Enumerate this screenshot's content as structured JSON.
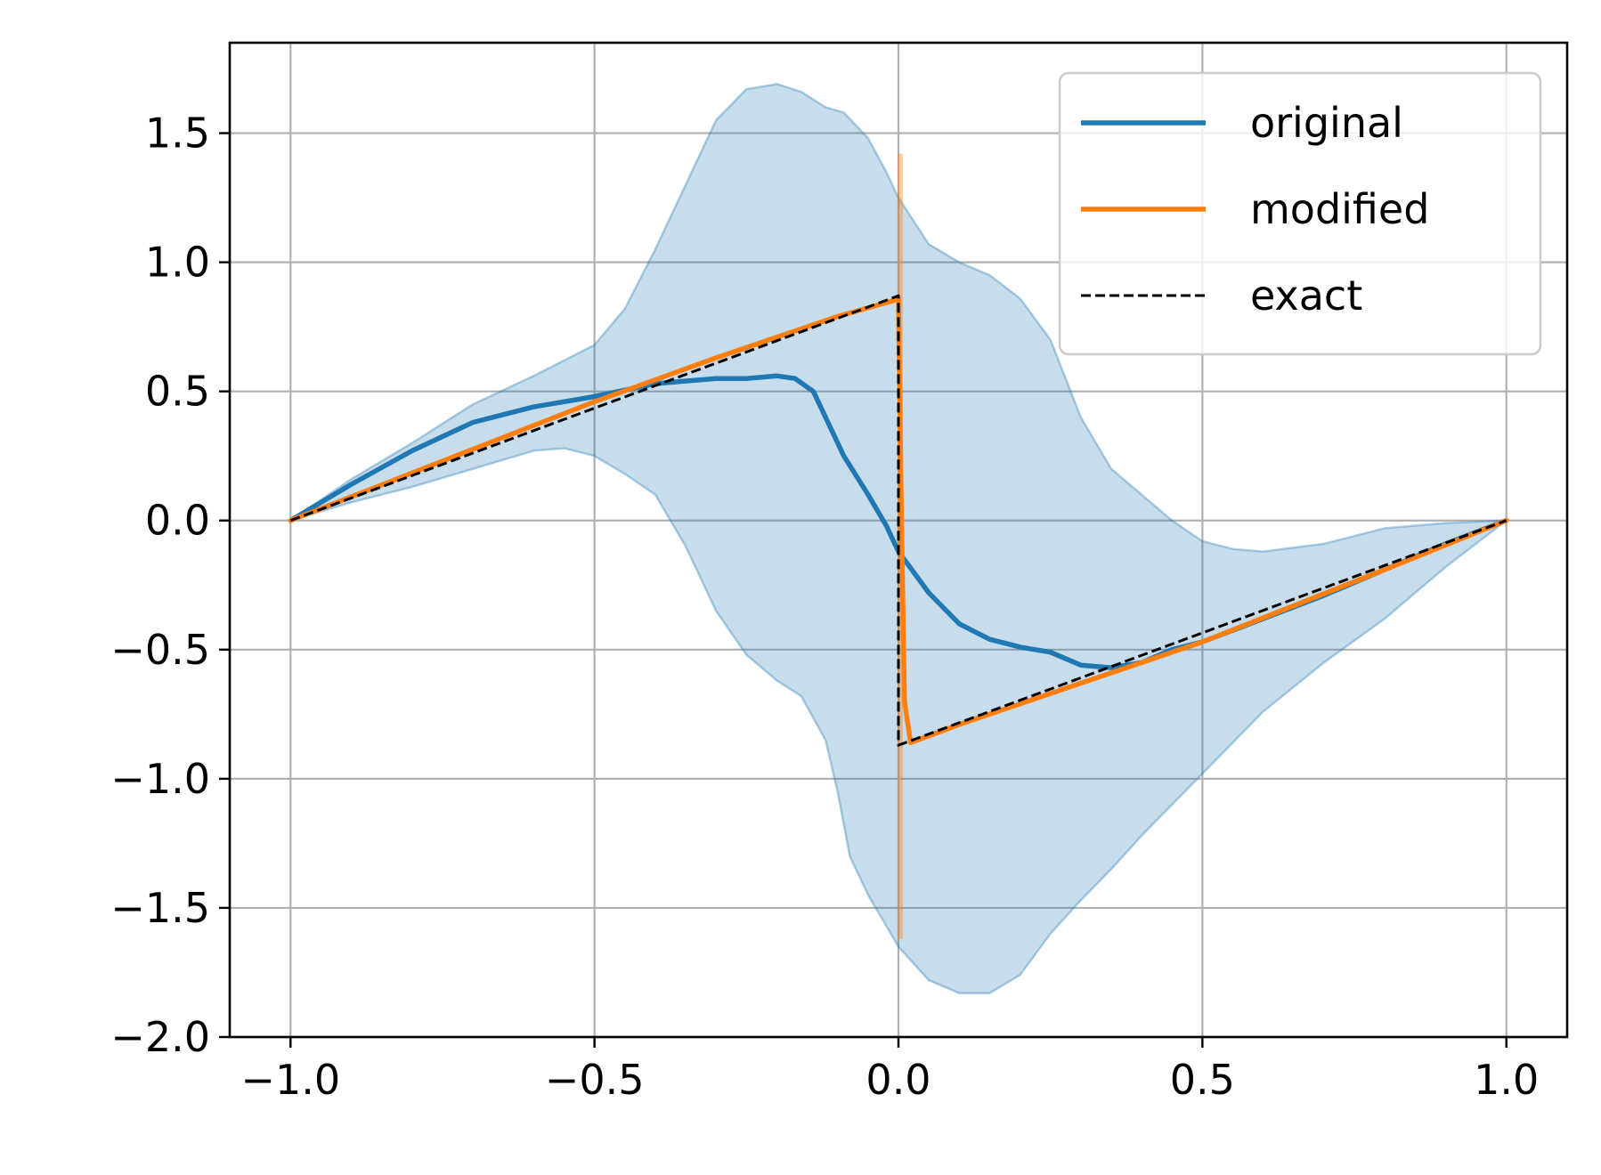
{
  "chart_data": {
    "type": "line",
    "title": "",
    "xlabel": "",
    "ylabel": "",
    "xlim": [
      -1.1,
      1.1
    ],
    "ylim": [
      -2.0,
      1.85
    ],
    "grid": true,
    "legend_position": "top-right",
    "x_ticks": [
      -1.0,
      -0.5,
      0.0,
      0.5,
      1.0
    ],
    "x_tick_labels": [
      "−1.0",
      "−0.5",
      "0.0",
      "0.5",
      "1.0"
    ],
    "y_ticks": [
      -2.0,
      -1.5,
      -1.0,
      -0.5,
      0.0,
      0.5,
      1.0,
      1.5
    ],
    "y_tick_labels": [
      "−2.0",
      "−1.5",
      "−1.0",
      "−0.5",
      "0.0",
      "0.5",
      "1.0",
      "1.5"
    ],
    "band": {
      "series": "original",
      "color": "#1f77b4",
      "upper": [
        [
          -1.0,
          0.0
        ],
        [
          -0.9,
          0.16
        ],
        [
          -0.8,
          0.3
        ],
        [
          -0.7,
          0.45
        ],
        [
          -0.6,
          0.56
        ],
        [
          -0.5,
          0.68
        ],
        [
          -0.45,
          0.82
        ],
        [
          -0.4,
          1.05
        ],
        [
          -0.35,
          1.3
        ],
        [
          -0.3,
          1.55
        ],
        [
          -0.25,
          1.67
        ],
        [
          -0.2,
          1.69
        ],
        [
          -0.16,
          1.66
        ],
        [
          -0.12,
          1.6
        ],
        [
          -0.09,
          1.58
        ],
        [
          -0.05,
          1.48
        ],
        [
          -0.02,
          1.35
        ],
        [
          0.0,
          1.25
        ],
        [
          0.05,
          1.07
        ],
        [
          0.1,
          1.0
        ],
        [
          0.15,
          0.95
        ],
        [
          0.2,
          0.86
        ],
        [
          0.25,
          0.7
        ],
        [
          0.3,
          0.4
        ],
        [
          0.35,
          0.2
        ],
        [
          0.4,
          0.1
        ],
        [
          0.45,
          0.0
        ],
        [
          0.5,
          -0.08
        ],
        [
          0.55,
          -0.11
        ],
        [
          0.6,
          -0.12
        ],
        [
          0.7,
          -0.09
        ],
        [
          0.8,
          -0.03
        ],
        [
          0.9,
          -0.01
        ],
        [
          1.0,
          0.0
        ]
      ],
      "lower": [
        [
          -1.0,
          0.0
        ],
        [
          -0.9,
          0.07
        ],
        [
          -0.8,
          0.13
        ],
        [
          -0.7,
          0.2
        ],
        [
          -0.6,
          0.27
        ],
        [
          -0.55,
          0.28
        ],
        [
          -0.5,
          0.25
        ],
        [
          -0.45,
          0.18
        ],
        [
          -0.4,
          0.1
        ],
        [
          -0.35,
          -0.1
        ],
        [
          -0.3,
          -0.35
        ],
        [
          -0.25,
          -0.52
        ],
        [
          -0.2,
          -0.62
        ],
        [
          -0.16,
          -0.68
        ],
        [
          -0.12,
          -0.85
        ],
        [
          -0.1,
          -1.05
        ],
        [
          -0.08,
          -1.3
        ],
        [
          -0.05,
          -1.45
        ],
        [
          0.0,
          -1.65
        ],
        [
          0.05,
          -1.78
        ],
        [
          0.1,
          -1.83
        ],
        [
          0.15,
          -1.83
        ],
        [
          0.2,
          -1.76
        ],
        [
          0.25,
          -1.6
        ],
        [
          0.3,
          -1.47
        ],
        [
          0.35,
          -1.35
        ],
        [
          0.4,
          -1.22
        ],
        [
          0.45,
          -1.1
        ],
        [
          0.5,
          -0.98
        ],
        [
          0.6,
          -0.74
        ],
        [
          0.7,
          -0.55
        ],
        [
          0.8,
          -0.38
        ],
        [
          0.9,
          -0.18
        ],
        [
          1.0,
          0.0
        ]
      ]
    },
    "series": [
      {
        "name": "original",
        "color": "#1f77b4",
        "style": "solid",
        "points": [
          [
            -1.0,
            0.0
          ],
          [
            -0.9,
            0.14
          ],
          [
            -0.8,
            0.27
          ],
          [
            -0.7,
            0.38
          ],
          [
            -0.6,
            0.44
          ],
          [
            -0.5,
            0.48
          ],
          [
            -0.4,
            0.53
          ],
          [
            -0.3,
            0.55
          ],
          [
            -0.25,
            0.55
          ],
          [
            -0.2,
            0.56
          ],
          [
            -0.17,
            0.55
          ],
          [
            -0.14,
            0.5
          ],
          [
            -0.12,
            0.4
          ],
          [
            -0.09,
            0.25
          ],
          [
            -0.05,
            0.1
          ],
          [
            -0.02,
            -0.02
          ],
          [
            0.0,
            -0.12
          ],
          [
            0.05,
            -0.28
          ],
          [
            0.1,
            -0.4
          ],
          [
            0.15,
            -0.46
          ],
          [
            0.2,
            -0.49
          ],
          [
            0.25,
            -0.51
          ],
          [
            0.3,
            -0.56
          ],
          [
            0.35,
            -0.57
          ],
          [
            0.4,
            -0.55
          ],
          [
            0.45,
            -0.5
          ],
          [
            0.5,
            -0.47
          ],
          [
            0.6,
            -0.38
          ],
          [
            0.7,
            -0.29
          ],
          [
            0.8,
            -0.19
          ],
          [
            0.9,
            -0.09
          ],
          [
            1.0,
            0.0
          ]
        ]
      },
      {
        "name": "modified",
        "color": "#ff7f0e",
        "style": "solid",
        "points": [
          [
            -1.0,
            0.0
          ],
          [
            -0.5,
            0.46
          ],
          [
            -0.3,
            0.63
          ],
          [
            -0.1,
            0.79
          ],
          [
            -0.01,
            0.85
          ],
          [
            0.0,
            0.86
          ],
          [
            0.005,
            0.0
          ],
          [
            0.01,
            -0.7
          ],
          [
            0.02,
            -0.86
          ],
          [
            0.1,
            -0.79
          ],
          [
            0.3,
            -0.63
          ],
          [
            0.5,
            -0.47
          ],
          [
            0.8,
            -0.19
          ],
          [
            1.0,
            0.0
          ]
        ],
        "spike": {
          "x": 0.003,
          "y_min": -1.62,
          "y_max": 1.42
        }
      },
      {
        "name": "exact",
        "color": "#000000",
        "style": "dashed",
        "points": [
          [
            -1.0,
            0.0
          ],
          [
            0.0,
            0.87
          ],
          [
            0.0,
            -0.87
          ],
          [
            1.0,
            0.0
          ]
        ]
      }
    ]
  }
}
